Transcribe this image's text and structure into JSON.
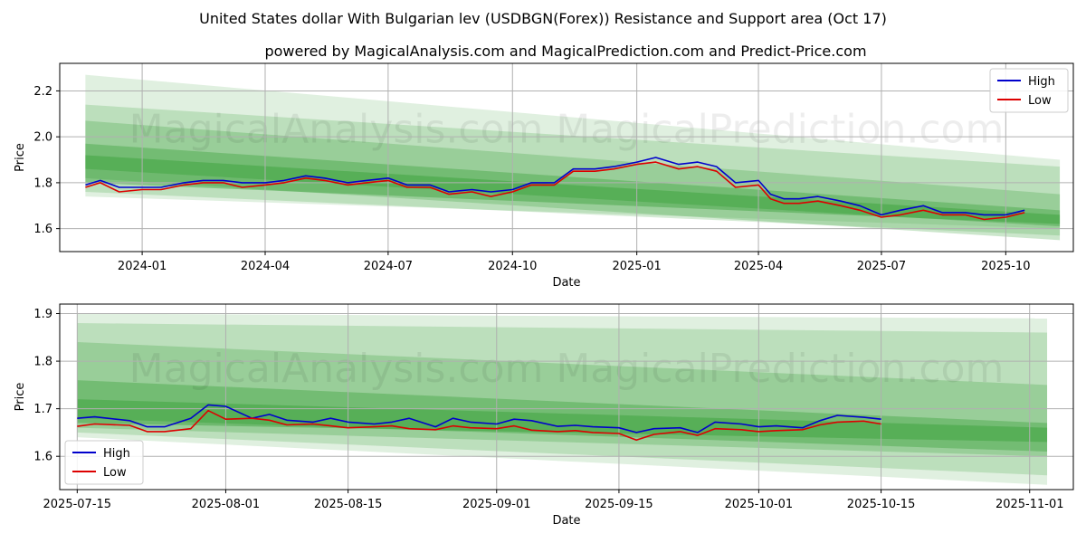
{
  "title": "United States dollar With Bulgarian lev (USDBGN(Forex)) Resistance and Support area (Oct 17)",
  "subtitle": "powered by MagicalAnalysis.com and MagicalPrediction.com and Predict-Price.com",
  "watermark": "MagicalAnalysis.com   MagicalPrediction.com",
  "colors": {
    "high": "#0000cc",
    "low": "#dd0000",
    "band": "#2e9a2e",
    "grid": "#b0b0b0"
  },
  "chart_data": [
    {
      "type": "line",
      "xlabel": "Date",
      "ylabel": "Price",
      "xlim": [
        "2023-11-01",
        "2025-11-20"
      ],
      "ylim": [
        1.5,
        2.32
      ],
      "grid": true,
      "legend_position": "top-right",
      "x_ticks": [
        "2024-01-01",
        "2024-04-01",
        "2024-07-01",
        "2024-10-01",
        "2025-01-01",
        "2025-04-01",
        "2025-07-01",
        "2025-10-01"
      ],
      "x_tick_labels": [
        "2024-01",
        "2024-04",
        "2024-07",
        "2024-10",
        "2025-01",
        "2025-04",
        "2025-07",
        "2025-10"
      ],
      "y_ticks": [
        1.6,
        1.8,
        2.0,
        2.2
      ],
      "y_tick_labels": [
        "1.6",
        "1.8",
        "2.0",
        "2.2"
      ],
      "series": [
        {
          "name": "High",
          "color": "#0000cc",
          "points": [
            [
              "2023-11-20",
              1.79
            ],
            [
              "2023-12-01",
              1.81
            ],
            [
              "2023-12-15",
              1.78
            ],
            [
              "2024-01-01",
              1.78
            ],
            [
              "2024-01-15",
              1.78
            ],
            [
              "2024-02-01",
              1.8
            ],
            [
              "2024-02-15",
              1.81
            ],
            [
              "2024-03-01",
              1.81
            ],
            [
              "2024-03-15",
              1.8
            ],
            [
              "2024-04-01",
              1.8
            ],
            [
              "2024-04-15",
              1.81
            ],
            [
              "2024-05-01",
              1.83
            ],
            [
              "2024-05-15",
              1.82
            ],
            [
              "2024-06-01",
              1.8
            ],
            [
              "2024-06-15",
              1.81
            ],
            [
              "2024-07-01",
              1.82
            ],
            [
              "2024-07-15",
              1.79
            ],
            [
              "2024-08-01",
              1.79
            ],
            [
              "2024-08-15",
              1.76
            ],
            [
              "2024-09-01",
              1.77
            ],
            [
              "2024-09-15",
              1.76
            ],
            [
              "2024-10-01",
              1.77
            ],
            [
              "2024-10-15",
              1.8
            ],
            [
              "2024-11-01",
              1.8
            ],
            [
              "2024-11-15",
              1.86
            ],
            [
              "2024-12-01",
              1.86
            ],
            [
              "2024-12-15",
              1.87
            ],
            [
              "2025-01-01",
              1.89
            ],
            [
              "2025-01-15",
              1.91
            ],
            [
              "2025-02-01",
              1.88
            ],
            [
              "2025-02-15",
              1.89
            ],
            [
              "2025-03-01",
              1.87
            ],
            [
              "2025-03-15",
              1.8
            ],
            [
              "2025-04-01",
              1.81
            ],
            [
              "2025-04-10",
              1.75
            ],
            [
              "2025-04-20",
              1.73
            ],
            [
              "2025-05-01",
              1.73
            ],
            [
              "2025-05-15",
              1.74
            ],
            [
              "2025-06-01",
              1.72
            ],
            [
              "2025-06-15",
              1.7
            ],
            [
              "2025-07-01",
              1.66
            ],
            [
              "2025-07-15",
              1.68
            ],
            [
              "2025-08-01",
              1.7
            ],
            [
              "2025-08-15",
              1.67
            ],
            [
              "2025-09-01",
              1.67
            ],
            [
              "2025-09-15",
              1.66
            ],
            [
              "2025-10-01",
              1.66
            ],
            [
              "2025-10-15",
              1.68
            ]
          ]
        },
        {
          "name": "Low",
          "color": "#dd0000",
          "points": [
            [
              "2023-11-20",
              1.78
            ],
            [
              "2023-12-01",
              1.8
            ],
            [
              "2023-12-15",
              1.76
            ],
            [
              "2024-01-01",
              1.77
            ],
            [
              "2024-01-15",
              1.77
            ],
            [
              "2024-02-01",
              1.79
            ],
            [
              "2024-02-15",
              1.8
            ],
            [
              "2024-03-01",
              1.8
            ],
            [
              "2024-03-15",
              1.78
            ],
            [
              "2024-04-01",
              1.79
            ],
            [
              "2024-04-15",
              1.8
            ],
            [
              "2024-05-01",
              1.82
            ],
            [
              "2024-05-15",
              1.81
            ],
            [
              "2024-06-01",
              1.79
            ],
            [
              "2024-06-15",
              1.8
            ],
            [
              "2024-07-01",
              1.81
            ],
            [
              "2024-07-15",
              1.78
            ],
            [
              "2024-08-01",
              1.78
            ],
            [
              "2024-08-15",
              1.75
            ],
            [
              "2024-09-01",
              1.76
            ],
            [
              "2024-09-15",
              1.74
            ],
            [
              "2024-10-01",
              1.76
            ],
            [
              "2024-10-15",
              1.79
            ],
            [
              "2024-11-01",
              1.79
            ],
            [
              "2024-11-15",
              1.85
            ],
            [
              "2024-12-01",
              1.85
            ],
            [
              "2024-12-15",
              1.86
            ],
            [
              "2025-01-01",
              1.88
            ],
            [
              "2025-01-15",
              1.89
            ],
            [
              "2025-02-01",
              1.86
            ],
            [
              "2025-02-15",
              1.87
            ],
            [
              "2025-03-01",
              1.85
            ],
            [
              "2025-03-15",
              1.78
            ],
            [
              "2025-04-01",
              1.79
            ],
            [
              "2025-04-10",
              1.73
            ],
            [
              "2025-04-20",
              1.71
            ],
            [
              "2025-05-01",
              1.71
            ],
            [
              "2025-05-15",
              1.72
            ],
            [
              "2025-06-01",
              1.7
            ],
            [
              "2025-06-15",
              1.68
            ],
            [
              "2025-07-01",
              1.65
            ],
            [
              "2025-07-15",
              1.66
            ],
            [
              "2025-08-01",
              1.68
            ],
            [
              "2025-08-15",
              1.66
            ],
            [
              "2025-09-01",
              1.66
            ],
            [
              "2025-09-15",
              1.64
            ],
            [
              "2025-10-01",
              1.65
            ],
            [
              "2025-10-15",
              1.67
            ]
          ]
        }
      ],
      "bands": [
        {
          "x": [
            "2023-11-20",
            "2025-11-10"
          ],
          "upper": [
            2.27,
            1.9
          ],
          "lower": [
            1.74,
            1.6
          ],
          "opacity": 0.15
        },
        {
          "x": [
            "2023-11-20",
            "2025-11-10"
          ],
          "upper": [
            2.14,
            1.87
          ],
          "lower": [
            1.76,
            1.57
          ],
          "opacity": 0.2
        },
        {
          "x": [
            "2023-11-20",
            "2025-11-10"
          ],
          "upper": [
            2.07,
            1.75
          ],
          "lower": [
            1.82,
            1.55
          ],
          "opacity": 0.25
        },
        {
          "x": [
            "2023-11-20",
            "2025-11-10"
          ],
          "upper": [
            1.97,
            1.68
          ],
          "lower": [
            1.86,
            1.61
          ],
          "opacity": 0.35
        },
        {
          "x": [
            "2023-11-20",
            "2025-11-10"
          ],
          "upper": [
            1.92,
            1.66
          ],
          "lower": [
            1.8,
            1.62
          ],
          "opacity": 0.4
        }
      ]
    },
    {
      "type": "line",
      "xlabel": "Date",
      "ylabel": "Price",
      "xlim": [
        "2025-07-13",
        "2025-11-06"
      ],
      "ylim": [
        1.53,
        1.92
      ],
      "grid": true,
      "legend_position": "bottom-left",
      "x_ticks": [
        "2025-07-15",
        "2025-08-01",
        "2025-08-15",
        "2025-09-01",
        "2025-09-15",
        "2025-10-01",
        "2025-10-15",
        "2025-11-01"
      ],
      "x_tick_labels": [
        "2025-07-15",
        "2025-08-01",
        "2025-08-15",
        "2025-09-01",
        "2025-09-15",
        "2025-10-01",
        "2025-10-15",
        "2025-11-01"
      ],
      "y_ticks": [
        1.6,
        1.7,
        1.8,
        1.9
      ],
      "y_tick_labels": [
        "1.6",
        "1.7",
        "1.8",
        "1.9"
      ],
      "series": [
        {
          "name": "High",
          "color": "#0000cc",
          "points": [
            [
              "2025-07-15",
              1.68
            ],
            [
              "2025-07-17",
              1.683
            ],
            [
              "2025-07-21",
              1.675
            ],
            [
              "2025-07-23",
              1.662
            ],
            [
              "2025-07-25",
              1.662
            ],
            [
              "2025-07-28",
              1.68
            ],
            [
              "2025-07-30",
              1.708
            ],
            [
              "2025-08-01",
              1.705
            ],
            [
              "2025-08-04",
              1.68
            ],
            [
              "2025-08-06",
              1.688
            ],
            [
              "2025-08-08",
              1.676
            ],
            [
              "2025-08-11",
              1.672
            ],
            [
              "2025-08-13",
              1.68
            ],
            [
              "2025-08-15",
              1.672
            ],
            [
              "2025-08-18",
              1.668
            ],
            [
              "2025-08-20",
              1.672
            ],
            [
              "2025-08-22",
              1.68
            ],
            [
              "2025-08-25",
              1.662
            ],
            [
              "2025-08-27",
              1.68
            ],
            [
              "2025-08-29",
              1.672
            ],
            [
              "2025-09-01",
              1.668
            ],
            [
              "2025-09-03",
              1.678
            ],
            [
              "2025-09-05",
              1.675
            ],
            [
              "2025-09-08",
              1.663
            ],
            [
              "2025-09-10",
              1.665
            ],
            [
              "2025-09-12",
              1.662
            ],
            [
              "2025-09-15",
              1.66
            ],
            [
              "2025-09-17",
              1.65
            ],
            [
              "2025-09-19",
              1.658
            ],
            [
              "2025-09-22",
              1.66
            ],
            [
              "2025-09-24",
              1.65
            ],
            [
              "2025-09-26",
              1.672
            ],
            [
              "2025-09-29",
              1.668
            ],
            [
              "2025-10-01",
              1.662
            ],
            [
              "2025-10-03",
              1.664
            ],
            [
              "2025-10-06",
              1.66
            ],
            [
              "2025-10-08",
              1.675
            ],
            [
              "2025-10-10",
              1.686
            ],
            [
              "2025-10-13",
              1.682
            ],
            [
              "2025-10-15",
              1.678
            ]
          ]
        },
        {
          "name": "Low",
          "color": "#dd0000",
          "points": [
            [
              "2025-07-15",
              1.663
            ],
            [
              "2025-07-17",
              1.668
            ],
            [
              "2025-07-21",
              1.665
            ],
            [
              "2025-07-23",
              1.652
            ],
            [
              "2025-07-25",
              1.652
            ],
            [
              "2025-07-28",
              1.658
            ],
            [
              "2025-07-30",
              1.696
            ],
            [
              "2025-08-01",
              1.678
            ],
            [
              "2025-08-04",
              1.68
            ],
            [
              "2025-08-06",
              1.676
            ],
            [
              "2025-08-08",
              1.666
            ],
            [
              "2025-08-11",
              1.668
            ],
            [
              "2025-08-13",
              1.664
            ],
            [
              "2025-08-15",
              1.66
            ],
            [
              "2025-08-18",
              1.662
            ],
            [
              "2025-08-20",
              1.664
            ],
            [
              "2025-08-22",
              1.658
            ],
            [
              "2025-08-25",
              1.656
            ],
            [
              "2025-08-27",
              1.664
            ],
            [
              "2025-08-29",
              1.66
            ],
            [
              "2025-09-01",
              1.658
            ],
            [
              "2025-09-03",
              1.664
            ],
            [
              "2025-09-05",
              1.655
            ],
            [
              "2025-09-08",
              1.652
            ],
            [
              "2025-09-10",
              1.654
            ],
            [
              "2025-09-12",
              1.65
            ],
            [
              "2025-09-15",
              1.648
            ],
            [
              "2025-09-17",
              1.634
            ],
            [
              "2025-09-19",
              1.646
            ],
            [
              "2025-09-22",
              1.652
            ],
            [
              "2025-09-24",
              1.644
            ],
            [
              "2025-09-26",
              1.658
            ],
            [
              "2025-09-29",
              1.656
            ],
            [
              "2025-10-01",
              1.652
            ],
            [
              "2025-10-03",
              1.654
            ],
            [
              "2025-10-06",
              1.656
            ],
            [
              "2025-10-08",
              1.666
            ],
            [
              "2025-10-10",
              1.672
            ],
            [
              "2025-10-13",
              1.674
            ],
            [
              "2025-10-15",
              1.668
            ]
          ]
        }
      ],
      "bands": [
        {
          "x": [
            "2025-07-15",
            "2025-11-03"
          ],
          "upper": [
            1.9,
            1.89
          ],
          "lower": [
            1.64,
            1.54
          ],
          "opacity": 0.15
        },
        {
          "x": [
            "2025-07-15",
            "2025-11-03"
          ],
          "upper": [
            1.88,
            1.86
          ],
          "lower": [
            1.65,
            1.56
          ],
          "opacity": 0.2
        },
        {
          "x": [
            "2025-07-15",
            "2025-11-03"
          ],
          "upper": [
            1.84,
            1.75
          ],
          "lower": [
            1.66,
            1.6
          ],
          "opacity": 0.25
        },
        {
          "x": [
            "2025-07-15",
            "2025-11-03"
          ],
          "upper": [
            1.76,
            1.67
          ],
          "lower": [
            1.68,
            1.61
          ],
          "opacity": 0.35
        },
        {
          "x": [
            "2025-07-15",
            "2025-11-03"
          ],
          "upper": [
            1.72,
            1.66
          ],
          "lower": [
            1.67,
            1.63
          ],
          "opacity": 0.4
        }
      ]
    }
  ]
}
